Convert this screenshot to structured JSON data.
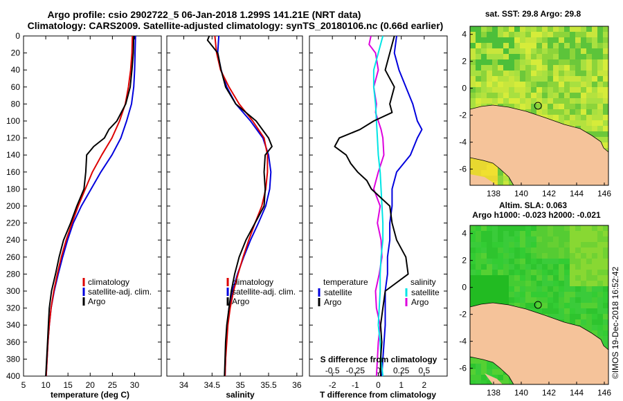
{
  "figure": {
    "title_line1": "Argo profile: csio 2902722_5 06-Jan-2018 1.299S 141.21E (NRT data)",
    "title_line2": "Climatology: CARS2009. Satellite-adjusted climatology: synTS_20180106.nc (0.66d earlier)",
    "footer": "©IMOS 19-Dec-2018 16:52:42"
  },
  "colors": {
    "climatology": "#dd0000",
    "satellite": "#0000dd",
    "argo": "#000000",
    "sal_satellite": "#00e5e5",
    "sal_argo": "#dd00dd",
    "land": "#f5c39a",
    "sea_green": "#33cc33"
  },
  "chart_data": [
    {
      "type": "line",
      "id": "temperature",
      "xlabel": "temperature (deg C)",
      "ylabel": "",
      "xlim": [
        5,
        36
      ],
      "ylim": [
        400,
        0
      ],
      "xticks": [
        5,
        10,
        15,
        20,
        25,
        30
      ],
      "yticks": [
        0,
        20,
        40,
        60,
        80,
        100,
        120,
        140,
        160,
        180,
        200,
        220,
        240,
        260,
        280,
        300,
        320,
        340,
        360,
        380,
        400
      ],
      "legend": [
        "climatology",
        "satellite-adj. clim.",
        "Argo"
      ],
      "series": [
        {
          "name": "climatology",
          "color": "#dd0000",
          "depth": [
            0,
            20,
            40,
            60,
            80,
            100,
            120,
            140,
            160,
            180,
            200,
            220,
            240,
            260,
            280,
            300,
            320,
            340,
            360,
            380,
            400
          ],
          "values": [
            29.5,
            29.4,
            29.1,
            28.6,
            27.9,
            26.6,
            24.9,
            22.6,
            20.5,
            18.9,
            17.3,
            15.9,
            14.6,
            13.5,
            12.6,
            11.8,
            11.2,
            10.8,
            10.5,
            10.3,
            10.1
          ]
        },
        {
          "name": "satellite-adj. clim.",
          "color": "#0000dd",
          "depth": [
            0,
            20,
            40,
            60,
            80,
            100,
            120,
            140,
            160,
            180,
            200,
            220,
            240,
            260,
            280,
            300,
            320,
            340,
            360,
            380,
            400
          ],
          "values": [
            30.2,
            30.1,
            30.0,
            29.8,
            29.3,
            28.2,
            26.9,
            24.9,
            22.4,
            20.2,
            18.0,
            16.2,
            14.9,
            13.8,
            12.8,
            11.9,
            11.2,
            10.8,
            10.5,
            10.3,
            10.1
          ]
        },
        {
          "name": "Argo",
          "color": "#000000",
          "depth": [
            0,
            20,
            40,
            60,
            80,
            100,
            110,
            120,
            130,
            140,
            160,
            180,
            200,
            220,
            240,
            260,
            280,
            300,
            320,
            340,
            360,
            380,
            400
          ],
          "values": [
            29.8,
            29.7,
            29.4,
            29.0,
            28.0,
            26.0,
            24.2,
            23.2,
            20.8,
            19.2,
            19.0,
            18.6,
            17.0,
            15.6,
            14.0,
            13.0,
            12.2,
            11.3,
            10.8,
            10.6,
            10.4,
            10.2,
            10.0
          ]
        }
      ]
    },
    {
      "type": "line",
      "id": "salinity",
      "xlabel": "salinity",
      "ylabel": "",
      "xlim": [
        33.7,
        36.1
      ],
      "ylim": [
        400,
        0
      ],
      "xticks": [
        34,
        34.5,
        35,
        35.5,
        36
      ],
      "legend": [
        "climatology",
        "satellite-adj. clim.",
        "Argo"
      ],
      "series": [
        {
          "name": "climatology",
          "color": "#dd0000",
          "depth": [
            0,
            20,
            40,
            60,
            80,
            100,
            120,
            140,
            160,
            180,
            200,
            220,
            240,
            260,
            280,
            300,
            320,
            340,
            360,
            380,
            400
          ],
          "values": [
            34.55,
            34.58,
            34.65,
            34.8,
            34.98,
            35.22,
            35.42,
            35.48,
            35.48,
            35.45,
            35.38,
            35.26,
            35.15,
            35.05,
            34.96,
            34.88,
            34.82,
            34.78,
            34.76,
            34.74,
            34.73
          ]
        },
        {
          "name": "satellite-adj. clim.",
          "color": "#0000dd",
          "depth": [
            0,
            20,
            40,
            60,
            80,
            100,
            120,
            140,
            160,
            180,
            200,
            220,
            240,
            260,
            280,
            300,
            320,
            340,
            360,
            380,
            400
          ],
          "values": [
            34.62,
            34.6,
            34.66,
            34.76,
            34.92,
            35.18,
            35.4,
            35.5,
            35.54,
            35.52,
            35.45,
            35.32,
            35.18,
            35.06,
            34.95,
            34.86,
            34.8,
            34.77,
            34.75,
            34.74,
            34.73
          ]
        },
        {
          "name": "Argo",
          "color": "#000000",
          "depth": [
            0,
            5,
            10,
            20,
            40,
            60,
            80,
            100,
            120,
            130,
            140,
            160,
            180,
            200,
            220,
            240,
            260,
            280,
            300,
            320,
            340,
            360,
            380,
            400
          ],
          "values": [
            34.45,
            34.42,
            34.48,
            34.6,
            34.66,
            34.74,
            34.92,
            35.28,
            35.5,
            35.56,
            35.44,
            35.42,
            35.44,
            35.42,
            35.26,
            35.1,
            34.98,
            34.9,
            34.84,
            34.8,
            34.76,
            34.74,
            34.73,
            34.72
          ]
        }
      ]
    },
    {
      "type": "line",
      "id": "differences",
      "xlabel": "T difference from climatology",
      "xlabel_top": "S difference from climatology",
      "xlim": [
        -3,
        3
      ],
      "ylim": [
        400,
        0
      ],
      "xticks": [
        -2,
        -1,
        0,
        1,
        2
      ],
      "xticks_top": [
        -0.5,
        -0.25,
        0,
        0.25,
        0.5
      ],
      "xticks_top_labels": [
        "-0.5",
        "-0.25",
        "0",
        "0.25",
        "0.5"
      ],
      "legend_titles": [
        "temperature",
        "salinity"
      ],
      "legend": [
        "satellite",
        "Argo",
        "satellite",
        "Argo"
      ],
      "series": [
        {
          "name": "temperature satellite",
          "color": "#0000dd",
          "depth": [
            0,
            20,
            40,
            60,
            80,
            90,
            100,
            110,
            120,
            140,
            160,
            180,
            200,
            220,
            240,
            260,
            280,
            300,
            320,
            340,
            360,
            380,
            400
          ],
          "values": [
            0.8,
            0.7,
            0.9,
            1.2,
            1.5,
            1.6,
            1.7,
            1.9,
            1.7,
            1.4,
            0.8,
            0.6,
            0.6,
            0.5,
            0.5,
            0.4,
            0.4,
            0.3,
            0.3,
            0.3,
            0.25,
            0.2,
            0.15
          ]
        },
        {
          "name": "temperature Argo",
          "color": "#000000",
          "depth": [
            0,
            20,
            40,
            60,
            80,
            90,
            100,
            110,
            120,
            130,
            140,
            150,
            160,
            170,
            180,
            200,
            220,
            240,
            260,
            280,
            300,
            320,
            340,
            360,
            380,
            400
          ],
          "values": [
            0.7,
            0.5,
            0.3,
            0.7,
            0.5,
            0.6,
            -0.2,
            -0.8,
            -1.7,
            -1.9,
            -1.4,
            -1.2,
            -0.9,
            -0.5,
            -0.3,
            0.5,
            0.6,
            0.8,
            1.2,
            1.3,
            0.3,
            0.2,
            0.1,
            0.15,
            0.1,
            0.1
          ]
        },
        {
          "name": "salinity satellite",
          "color": "#00e5e5",
          "depth": [
            0,
            20,
            40,
            60,
            80,
            100,
            120,
            140,
            160,
            180,
            200,
            220,
            240,
            260,
            280,
            300,
            320,
            340,
            360,
            380,
            400
          ],
          "values": [
            0.05,
            0.0,
            -0.05,
            -0.05,
            -0.03,
            -0.02,
            -0.01,
            0.0,
            0.02,
            0.03,
            0.04,
            0.05,
            0.05,
            0.03,
            0.02,
            0.02,
            0.01,
            0.0,
            0.02,
            0.03,
            0.05
          ]
        },
        {
          "name": "salinity Argo",
          "color": "#dd00dd",
          "depth": [
            0,
            10,
            20,
            40,
            60,
            80,
            90,
            100,
            110,
            120,
            140,
            160,
            180,
            200,
            220,
            240,
            260,
            280,
            300,
            320,
            340,
            360,
            380,
            400
          ],
          "values": [
            -0.08,
            -0.1,
            -0.03,
            0.0,
            -0.05,
            -0.02,
            -0.03,
            0.0,
            0.03,
            0.05,
            0.06,
            0.0,
            -0.05,
            0.02,
            -0.01,
            0.03,
            0.04,
            0.01,
            -0.03,
            -0.02,
            0.02,
            0.0,
            -0.01,
            -0.02
          ]
        }
      ]
    },
    {
      "type": "heatmap",
      "id": "sst-map",
      "title": "sat. SST: 29.8 Argo: 29.8",
      "xlim": [
        136.3,
        146.3
      ],
      "ylim": [
        -7.2,
        4.6
      ],
      "xticks": [
        138,
        140,
        142,
        144,
        146
      ],
      "yticks": [
        4,
        2,
        0,
        -2,
        -4,
        -6
      ],
      "marker": {
        "lon": 141.21,
        "lat": -1.299
      }
    },
    {
      "type": "heatmap",
      "id": "sla-map",
      "title_line1": "Altim. SLA: 0.063",
      "title_line2": "Argo h1000: -0.023 h2000: -0.021",
      "xlim": [
        136.3,
        146.3
      ],
      "ylim": [
        -7.2,
        4.6
      ],
      "xticks": [
        138,
        140,
        142,
        144,
        146
      ],
      "yticks": [
        4,
        2,
        0,
        -2,
        -4,
        -6
      ],
      "marker": {
        "lon": 141.21,
        "lat": -1.299
      }
    }
  ]
}
